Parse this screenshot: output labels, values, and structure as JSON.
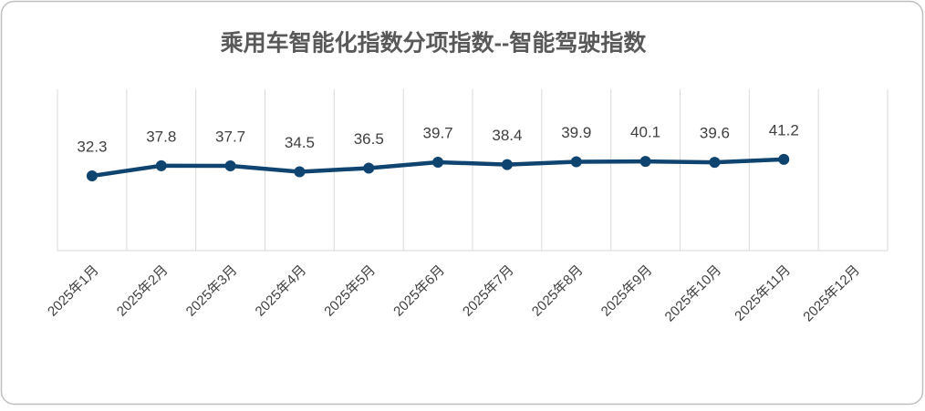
{
  "chart_data": {
    "type": "line",
    "title": "乘用车智能化指数分项指数--智能驾驶指数",
    "categories": [
      "2025年1月",
      "2025年2月",
      "2025年3月",
      "2025年4月",
      "2025年5月",
      "2025年6月",
      "2025年7月",
      "2025年8月",
      "2025年9月",
      "2025年10月",
      "2025年11月",
      "2025年12月"
    ],
    "values": [
      32.3,
      37.8,
      37.7,
      34.5,
      36.5,
      39.7,
      38.4,
      39.9,
      40.1,
      39.6,
      41.2,
      null
    ],
    "color": "#0f4470",
    "ylim": [
      -8,
      79
    ],
    "grid": true
  }
}
